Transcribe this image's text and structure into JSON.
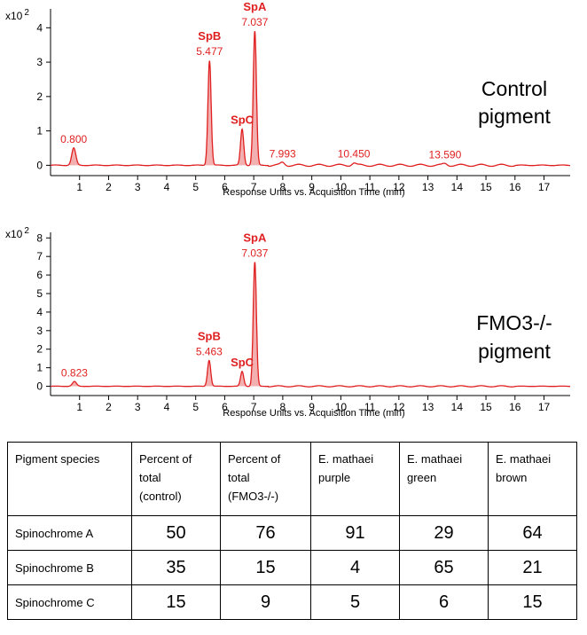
{
  "chart_data": [
    {
      "type": "line",
      "title": "",
      "side_label": [
        "Control",
        "pigment"
      ],
      "xlabel": "Response Units vs. Acquisition Time (min)",
      "ylabel": "",
      "y_multiplier": "x10",
      "y_multiplier_exp": "2",
      "xlim": [
        0,
        17.9
      ],
      "ylim": [
        -0.3,
        4.55
      ],
      "xticks": [
        1,
        2,
        3,
        4,
        5,
        6,
        7,
        8,
        9,
        10,
        11,
        12,
        13,
        14,
        15,
        16,
        17
      ],
      "yticks": [
        0,
        1,
        2,
        3,
        4
      ],
      "peaks": [
        {
          "time": 0.8,
          "height": 0.5,
          "label": "0.800",
          "name": ""
        },
        {
          "time": 5.477,
          "height": 3.05,
          "label": "5.477",
          "name": "SpB"
        },
        {
          "time": 6.6,
          "height": 1.05,
          "label": "",
          "name": "SpC"
        },
        {
          "time": 7.037,
          "height": 3.9,
          "label": "7.037",
          "name": "SpA"
        },
        {
          "time": 7.993,
          "height": 0.08,
          "label": "7.993",
          "name": ""
        },
        {
          "time": 10.45,
          "height": 0.07,
          "label": "10.450",
          "name": ""
        },
        {
          "time": 13.59,
          "height": 0.05,
          "label": "13.590",
          "name": ""
        }
      ]
    },
    {
      "type": "line",
      "title": "",
      "side_label": [
        "FMO3-/-",
        "pigment"
      ],
      "xlabel": "Response Units vs. Acquisition Time (min)",
      "ylabel": "",
      "y_multiplier": "x10",
      "y_multiplier_exp": "2",
      "xlim": [
        0,
        17.9
      ],
      "ylim": [
        -0.5,
        8.3
      ],
      "xticks": [
        1,
        2,
        3,
        4,
        5,
        6,
        7,
        8,
        9,
        10,
        11,
        12,
        13,
        14,
        15,
        16,
        17
      ],
      "yticks": [
        0,
        1,
        2,
        3,
        4,
        5,
        6,
        7,
        8
      ],
      "peaks": [
        {
          "time": 0.823,
          "height": 0.25,
          "label": "0.823",
          "name": ""
        },
        {
          "time": 5.463,
          "height": 1.4,
          "label": "5.463",
          "name": "SpB"
        },
        {
          "time": 6.6,
          "height": 0.8,
          "label": "",
          "name": "SpC"
        },
        {
          "time": 7.037,
          "height": 6.7,
          "label": "7.037",
          "name": "SpA"
        }
      ]
    }
  ],
  "table": {
    "headers": [
      [
        "Pigment species"
      ],
      [
        "Percent of",
        "total",
        "(control)"
      ],
      [
        "Percent of",
        "total",
        "(FMO3-/-)"
      ],
      [
        "E. mathaei",
        "purple"
      ],
      [
        "E. mathaei",
        "green"
      ],
      [
        "E. mathaei",
        "brown"
      ]
    ],
    "rows": [
      {
        "label": "Spinochrome  A",
        "values": [
          "50",
          "76",
          "91",
          "29",
          "64"
        ]
      },
      {
        "label": "Spinochrome  B",
        "values": [
          "35",
          "15",
          "4",
          "65",
          "21"
        ]
      },
      {
        "label": "Spinochrome  C",
        "values": [
          "15",
          "9",
          "5",
          "6",
          "15"
        ]
      }
    ]
  },
  "colors": {
    "trace": "#e02020",
    "fill": "#f3b0b0",
    "axis": "#000000"
  }
}
